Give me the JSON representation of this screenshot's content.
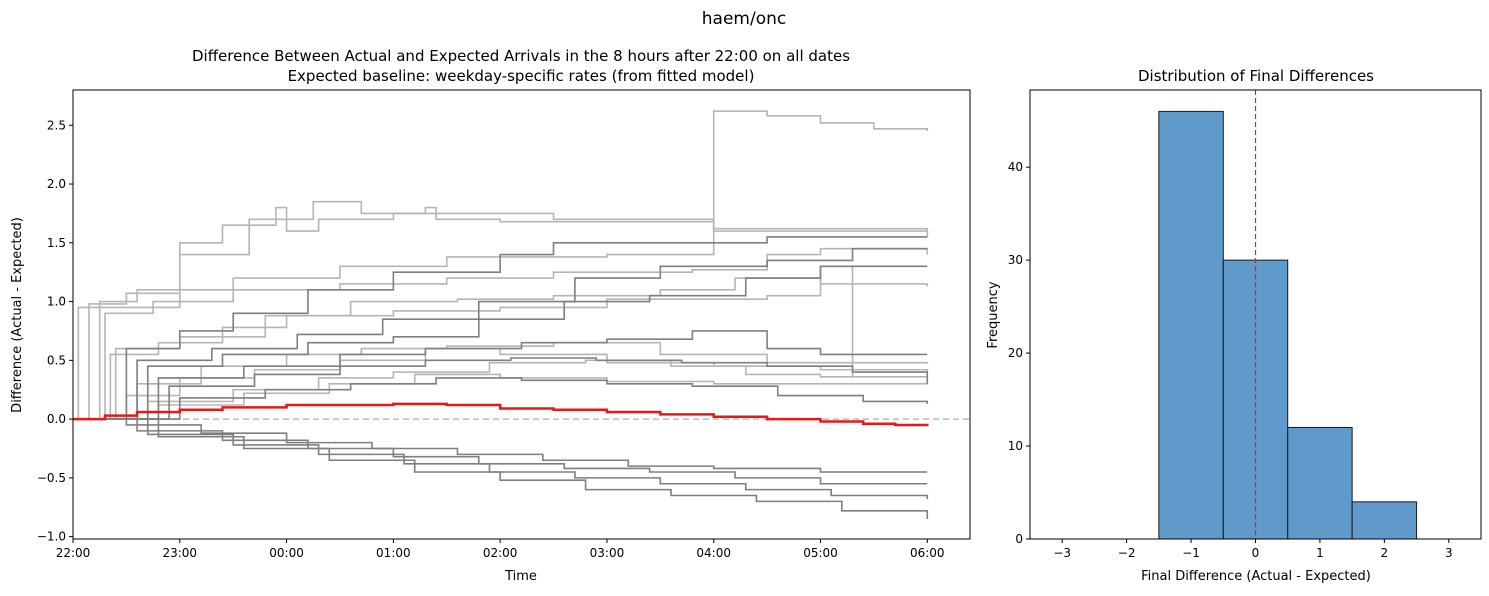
{
  "figure": {
    "suptitle": "haem/onc"
  },
  "chart_data": [
    {
      "type": "line",
      "title": "Difference Between Actual and Expected Arrivals in the 8 hours after 22:00 on all dates",
      "subtitle": "Expected baseline: weekday-specific rates (from fitted model)",
      "xlabel": "Time",
      "ylabel": "Difference (Actual - Expected)",
      "x_unit": "clock time (hours after 22:00)",
      "xlim": [
        0,
        8.4
      ],
      "ylim": [
        -1.02,
        2.8
      ],
      "x_ticks": [
        {
          "value": 0,
          "label": "22:00"
        },
        {
          "value": 1,
          "label": "23:00"
        },
        {
          "value": 2,
          "label": "00:00"
        },
        {
          "value": 3,
          "label": "01:00"
        },
        {
          "value": 4,
          "label": "02:00"
        },
        {
          "value": 5,
          "label": "03:00"
        },
        {
          "value": 6,
          "label": "04:00"
        },
        {
          "value": 7,
          "label": "05:00"
        },
        {
          "value": 8,
          "label": "06:00"
        }
      ],
      "y_ticks": [
        {
          "value": -1.0,
          "label": "−1.0"
        },
        {
          "value": -0.5,
          "label": "−0.5"
        },
        {
          "value": 0.0,
          "label": "0.0"
        },
        {
          "value": 0.5,
          "label": "0.5"
        },
        {
          "value": 1.0,
          "label": "1.0"
        },
        {
          "value": 1.5,
          "label": "1.5"
        },
        {
          "value": 2.0,
          "label": "2.0"
        },
        {
          "value": 2.5,
          "label": "2.5"
        }
      ],
      "reference_line": {
        "y": 0,
        "style": "dashed",
        "color": "#bbbbbb"
      },
      "colors": {
        "light": "#b5b5b5",
        "dark": "#7f7f7f",
        "mean": "#e8181a"
      },
      "series": [
        {
          "style": "light",
          "x": [
            0,
            0.05,
            1.0,
            1.65,
            2.25,
            2.7,
            3.3,
            3.4,
            4.0,
            6.0,
            8.0
          ],
          "y": [
            0,
            0.95,
            1.4,
            1.7,
            1.85,
            1.75,
            1.8,
            1.7,
            1.68,
            1.6,
            1.55
          ]
        },
        {
          "style": "light",
          "x": [
            0,
            0.15,
            0.5,
            1.0,
            1.4,
            1.9,
            2.0,
            2.3,
            3.0,
            4.5,
            6.0,
            8.0
          ],
          "y": [
            0,
            0.98,
            1.07,
            1.5,
            1.65,
            1.8,
            1.6,
            1.7,
            1.75,
            1.7,
            1.62,
            1.55
          ]
        },
        {
          "style": "light",
          "x": [
            0,
            0.25,
            0.6,
            1.5,
            2.5,
            3.5,
            5.0,
            6.0,
            6.5,
            7.0,
            7.5,
            8.0
          ],
          "y": [
            0,
            1.0,
            1.1,
            1.2,
            1.3,
            1.38,
            1.4,
            2.62,
            2.58,
            2.52,
            2.47,
            2.45
          ]
        },
        {
          "style": "light",
          "x": [
            0,
            0.3,
            0.75,
            1.5,
            2.5,
            3.5,
            4.5,
            5.8,
            6.5,
            7.0,
            8.0
          ],
          "y": [
            0,
            0.9,
            1.0,
            1.1,
            1.15,
            1.2,
            1.25,
            1.27,
            1.4,
            1.45,
            1.4
          ]
        },
        {
          "style": "light",
          "x": [
            0,
            0.4,
            1.0,
            1.8,
            2.6,
            3.6,
            4.5,
            5.5,
            6.2,
            7.0,
            8.0
          ],
          "y": [
            0,
            0.6,
            0.7,
            0.88,
            1.0,
            1.02,
            1.05,
            1.1,
            1.2,
            1.15,
            1.13
          ]
        },
        {
          "style": "light",
          "x": [
            0,
            0.35,
            0.8,
            1.4,
            2.0,
            3.0,
            4.0,
            5.0,
            6.5,
            7.0,
            7.3
          ],
          "y": [
            0,
            0.55,
            0.65,
            0.78,
            0.88,
            0.92,
            0.95,
            1.02,
            1.05,
            1.3,
            0.35
          ]
        },
        {
          "style": "light",
          "x": [
            0,
            0.6,
            1.2,
            2.0,
            2.7,
            3.5,
            4.5,
            5.5,
            6.5,
            8.0
          ],
          "y": [
            0,
            0.3,
            0.45,
            0.55,
            0.6,
            0.62,
            0.65,
            0.55,
            0.48,
            0.47
          ]
        },
        {
          "style": "light",
          "x": [
            0,
            0.5,
            1.0,
            1.7,
            2.5,
            3.3,
            4.0,
            5.0,
            6.0,
            7.0,
            8.0
          ],
          "y": [
            0,
            0.2,
            0.35,
            0.42,
            0.5,
            0.6,
            0.55,
            0.48,
            0.45,
            0.42,
            0.4
          ]
        },
        {
          "style": "light",
          "x": [
            0,
            0.7,
            1.5,
            2.3,
            3.0,
            3.9,
            4.8,
            5.6,
            6.3,
            7.0,
            8.0
          ],
          "y": [
            0,
            0.15,
            0.25,
            0.35,
            0.4,
            0.48,
            0.5,
            0.45,
            0.38,
            0.36,
            0.35
          ]
        },
        {
          "style": "light",
          "x": [
            0,
            0.8,
            1.6,
            2.4,
            3.2,
            4.0,
            5.0,
            6.0,
            7.0,
            8.0
          ],
          "y": [
            0,
            0.12,
            0.22,
            0.3,
            0.38,
            0.35,
            0.32,
            0.3,
            0.3,
            0.3
          ]
        },
        {
          "style": "dark",
          "x": [
            0,
            0.5,
            1.0,
            1.5,
            2.2,
            3.0,
            4.0,
            4.5,
            5.5,
            6.5,
            7.2,
            8.0
          ],
          "y": [
            0,
            0.6,
            0.75,
            0.9,
            1.1,
            1.25,
            1.4,
            1.5,
            1.5,
            1.55,
            1.55,
            1.55
          ]
        },
        {
          "style": "dark",
          "x": [
            0,
            0.6,
            1.3,
            2.1,
            2.9,
            3.8,
            4.7,
            5.5,
            6.5,
            7.3,
            8.0
          ],
          "y": [
            0,
            0.5,
            0.6,
            0.72,
            0.85,
            1.0,
            1.2,
            1.3,
            1.35,
            1.45,
            1.45
          ]
        },
        {
          "style": "dark",
          "x": [
            0,
            0.7,
            1.4,
            2.2,
            3.0,
            3.8,
            4.6,
            5.4,
            6.3,
            7.0,
            8.0
          ],
          "y": [
            0,
            0.45,
            0.55,
            0.65,
            0.7,
            0.85,
            1.0,
            1.05,
            1.2,
            1.3,
            1.3
          ]
        },
        {
          "style": "dark",
          "x": [
            0,
            0.8,
            1.6,
            2.5,
            3.3,
            4.2,
            5.0,
            5.8,
            6.5,
            7.0,
            8.0
          ],
          "y": [
            0,
            0.35,
            0.45,
            0.55,
            0.6,
            0.65,
            0.68,
            0.75,
            0.6,
            0.55,
            0.55
          ]
        },
        {
          "style": "dark",
          "x": [
            0,
            0.9,
            1.7,
            2.5,
            3.3,
            4.1,
            4.9,
            5.7,
            6.5,
            7.3,
            8.0
          ],
          "y": [
            0,
            0.28,
            0.38,
            0.45,
            0.5,
            0.52,
            0.5,
            0.48,
            0.45,
            0.4,
            0.3
          ]
        },
        {
          "style": "dark",
          "x": [
            0,
            1.0,
            1.8,
            2.6,
            3.4,
            4.2,
            5.0,
            5.8,
            6.6,
            7.4,
            8.0
          ],
          "y": [
            0,
            0.18,
            0.25,
            0.3,
            0.35,
            0.33,
            0.3,
            0.28,
            0.2,
            0.15,
            0.13
          ]
        },
        {
          "style": "dark",
          "x": [
            0,
            0.5,
            1.2,
            2.0,
            2.8,
            3.6,
            4.4,
            5.2,
            6.0,
            7.0,
            8.0
          ],
          "y": [
            0,
            -0.05,
            -0.12,
            -0.2,
            -0.25,
            -0.3,
            -0.35,
            -0.4,
            -0.42,
            -0.45,
            -0.45
          ]
        },
        {
          "style": "dark",
          "x": [
            0,
            0.6,
            1.4,
            2.2,
            3.0,
            3.8,
            4.6,
            5.4,
            6.2,
            7.0,
            8.0
          ],
          "y": [
            0,
            -0.1,
            -0.18,
            -0.25,
            -0.32,
            -0.38,
            -0.42,
            -0.45,
            -0.5,
            -0.55,
            -0.55
          ]
        },
        {
          "style": "dark",
          "x": [
            0,
            0.7,
            1.5,
            2.3,
            3.1,
            3.9,
            4.7,
            5.5,
            6.3,
            7.1,
            8.0
          ],
          "y": [
            0,
            -0.13,
            -0.22,
            -0.3,
            -0.38,
            -0.45,
            -0.5,
            -0.55,
            -0.6,
            -0.65,
            -0.68
          ]
        },
        {
          "style": "dark",
          "x": [
            0,
            0.8,
            1.6,
            2.4,
            3.2,
            4.0,
            4.8,
            5.6,
            6.4,
            7.2,
            8.0
          ],
          "y": [
            0,
            -0.15,
            -0.25,
            -0.35,
            -0.45,
            -0.52,
            -0.6,
            -0.65,
            -0.7,
            -0.78,
            -0.85
          ]
        },
        {
          "style": "mean",
          "x": [
            0,
            0.3,
            0.6,
            1.0,
            1.4,
            2.0,
            2.6,
            3.0,
            3.5,
            4.0,
            4.5,
            5.0,
            5.5,
            6.0,
            6.5,
            7.0,
            7.4,
            7.7,
            8.0
          ],
          "y": [
            0,
            0.03,
            0.06,
            0.08,
            0.1,
            0.12,
            0.12,
            0.13,
            0.12,
            0.09,
            0.08,
            0.06,
            0.04,
            0.02,
            0.0,
            -0.02,
            -0.04,
            -0.05,
            -0.06
          ]
        }
      ]
    },
    {
      "type": "bar",
      "title": "Distribution of Final Differences",
      "xlabel": "Final Difference (Actual - Expected)",
      "ylabel": "Frequency",
      "bin_edges": [
        -1.5,
        -0.5,
        0.5,
        1.5,
        2.5
      ],
      "values": [
        46,
        30,
        12,
        4
      ],
      "xlim": [
        -3.5,
        3.5
      ],
      "ylim": [
        0,
        48.3
      ],
      "x_ticks": [
        {
          "value": -3,
          "label": "−3"
        },
        {
          "value": -2,
          "label": "−2"
        },
        {
          "value": -1,
          "label": "−1"
        },
        {
          "value": 0,
          "label": "0"
        },
        {
          "value": 1,
          "label": "1"
        },
        {
          "value": 2,
          "label": "2"
        },
        {
          "value": 3,
          "label": "3"
        }
      ],
      "y_ticks": [
        {
          "value": 0,
          "label": "0"
        },
        {
          "value": 10,
          "label": "10"
        },
        {
          "value": 20,
          "label": "20"
        },
        {
          "value": 30,
          "label": "30"
        },
        {
          "value": 40,
          "label": "40"
        }
      ],
      "reference_line": {
        "x": 0,
        "style": "dashed",
        "color": "#e8181a"
      },
      "bar_color": "#4f8fc4"
    }
  ]
}
